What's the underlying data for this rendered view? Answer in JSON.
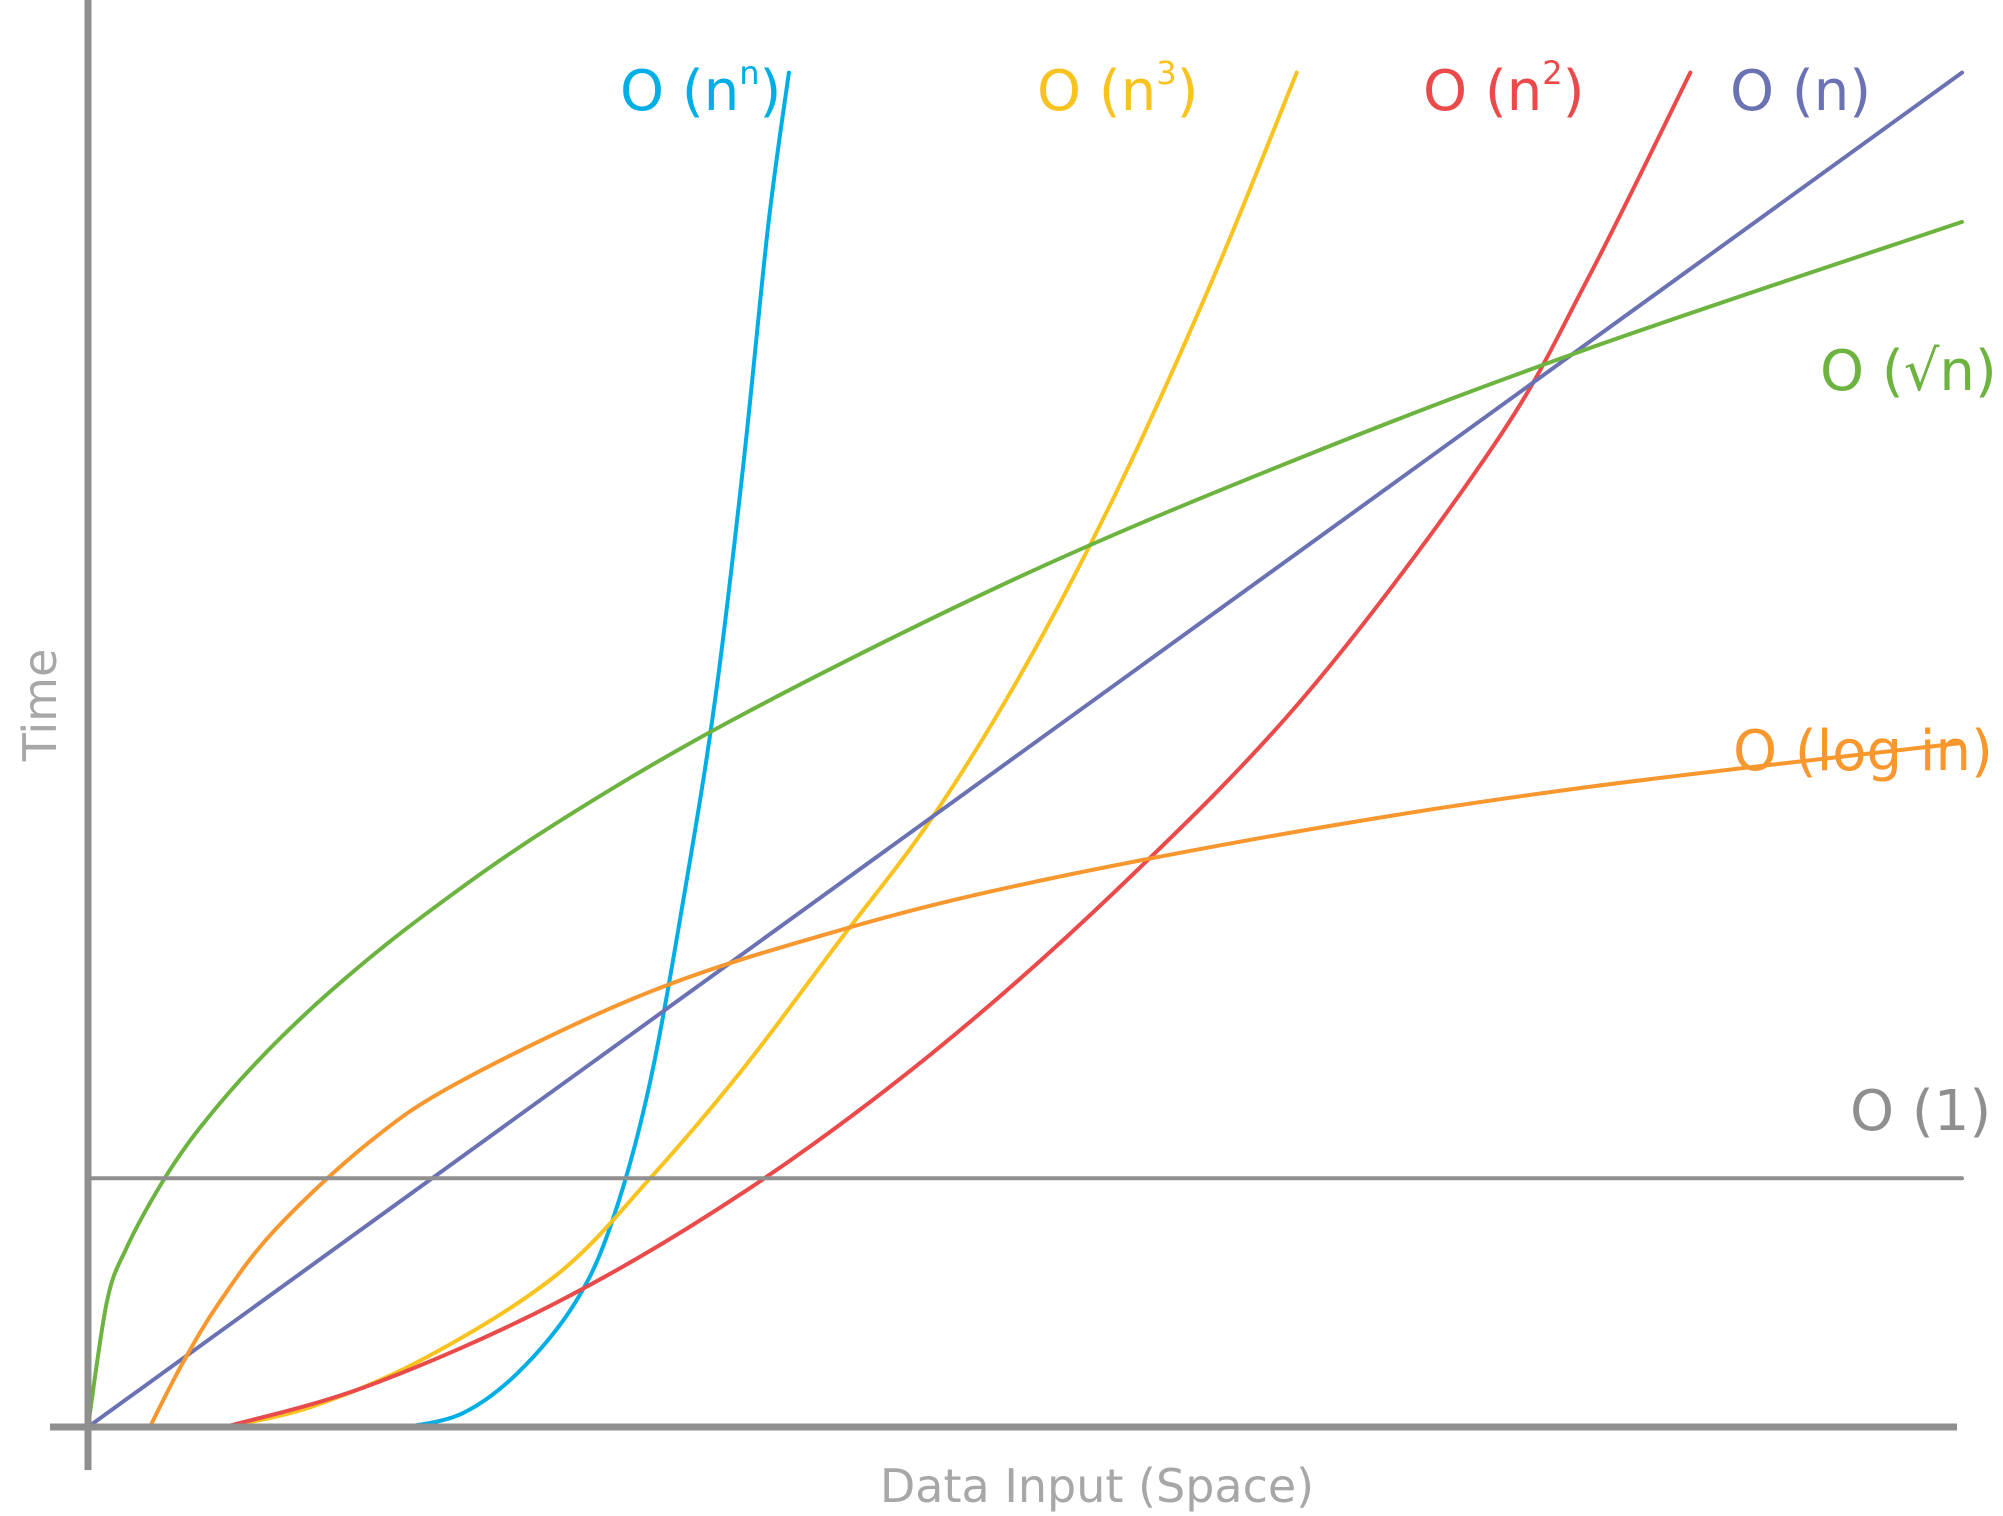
{
  "chart_data": {
    "type": "line",
    "title": "",
    "xlabel": "Data Input (Space)",
    "ylabel": "Time",
    "xlim": [
      0,
      100
    ],
    "ylim": [
      0,
      100
    ],
    "grid": false,
    "legend": "inline labels at curve ends",
    "series": [
      {
        "name": "O (n^n)",
        "label_parts": [
          "O (n",
          "n",
          ")"
        ],
        "color": "#00aee6",
        "points": [
          [
            17,
            0
          ],
          [
            20,
            1
          ],
          [
            23,
            4
          ],
          [
            26,
            9
          ],
          [
            28,
            15
          ],
          [
            30,
            25
          ],
          [
            32,
            40
          ],
          [
            33.5,
            53
          ],
          [
            35,
            70
          ],
          [
            36.3,
            87
          ],
          [
            37.4,
            98
          ]
        ]
      },
      {
        "name": "O (n^3)",
        "label_parts": [
          "O (n",
          "3",
          ")"
        ],
        "color": "#f9c31f",
        "points": [
          [
            7.3,
            0
          ],
          [
            12,
            1.5
          ],
          [
            18,
            5
          ],
          [
            25,
            11
          ],
          [
            30,
            18
          ],
          [
            35,
            26
          ],
          [
            40,
            35
          ],
          [
            45,
            44
          ],
          [
            50,
            55
          ],
          [
            55,
            68
          ],
          [
            60,
            83
          ],
          [
            64.5,
            98
          ]
        ]
      },
      {
        "name": "O (n^2)",
        "label_parts": [
          "O (n",
          "2",
          ")"
        ],
        "color": "#ea4a4a",
        "points": [
          [
            7.3,
            0
          ],
          [
            15,
            3
          ],
          [
            25,
            9
          ],
          [
            35,
            17
          ],
          [
            45,
            27
          ],
          [
            55,
            39
          ],
          [
            65,
            53
          ],
          [
            75,
            71
          ],
          [
            80,
            83
          ],
          [
            85.5,
            98
          ]
        ]
      },
      {
        "name": "O (n)",
        "label_parts": [
          "O (n)"
        ],
        "color": "#6b72b4",
        "points": [
          [
            0,
            0
          ],
          [
            100,
            98
          ]
        ]
      },
      {
        "name": "O (√n)",
        "label_parts": [
          "O (√n)"
        ],
        "color": "#6cb33f",
        "points": [
          [
            0,
            0
          ],
          [
            1,
            9
          ],
          [
            2,
            12.8
          ],
          [
            4,
            17.8
          ],
          [
            6,
            21.7
          ],
          [
            9,
            26.4
          ],
          [
            13,
            31.6
          ],
          [
            18,
            37.1
          ],
          [
            25,
            43.7
          ],
          [
            35,
            51.6
          ],
          [
            50,
            61.7
          ],
          [
            65,
            70.3
          ],
          [
            80,
            78
          ],
          [
            100,
            87.2
          ]
        ]
      },
      {
        "name": "O (log in)",
        "label_parts": [
          "O (log in)"
        ],
        "color": "#f7972e",
        "points": [
          [
            3.3,
            0
          ],
          [
            5,
            4.5
          ],
          [
            7,
            9
          ],
          [
            10,
            14.3
          ],
          [
            15,
            20.6
          ],
          [
            20,
            25.1
          ],
          [
            30,
            31.5
          ],
          [
            40,
            35.9
          ],
          [
            50,
            39.3
          ],
          [
            65,
            43.2
          ],
          [
            80,
            46.3
          ],
          [
            100,
            49.5
          ]
        ]
      },
      {
        "name": "O (1)",
        "label_parts": [
          "O (1)"
        ],
        "color": "#8f8f8f",
        "points": [
          [
            0,
            18
          ],
          [
            100,
            18
          ]
        ]
      }
    ]
  }
}
